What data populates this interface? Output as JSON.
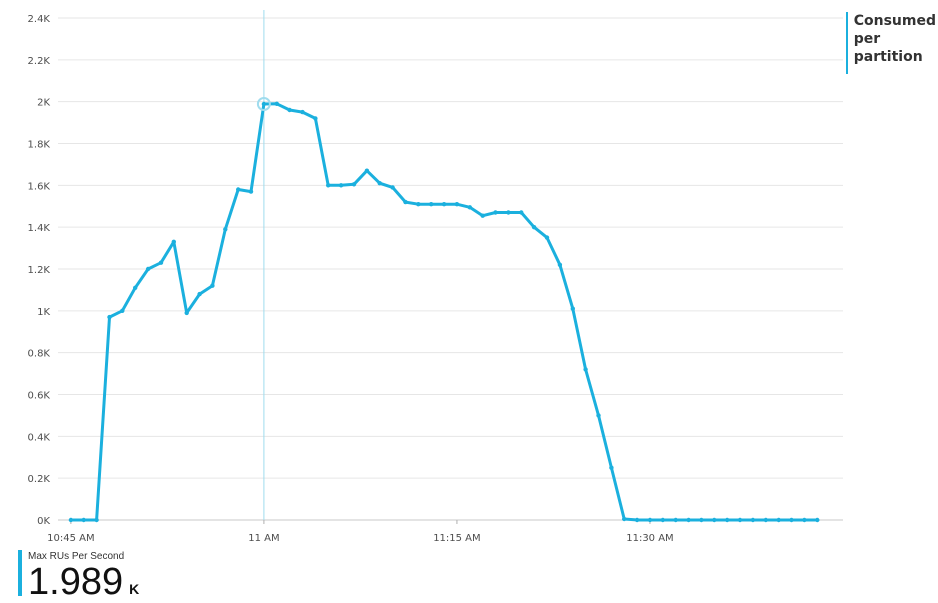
{
  "chart_data": {
    "type": "line",
    "title": "",
    "xlabel": "",
    "ylabel": "",
    "ylim": [
      0,
      2400
    ],
    "grid": true,
    "y_ticks": [
      0,
      200,
      400,
      600,
      800,
      1000,
      1200,
      1400,
      1600,
      1800,
      2000,
      2200,
      2400
    ],
    "y_tick_labels": [
      "0K",
      "0.2K",
      "0.4K",
      "0.6K",
      "0.8K",
      "1K",
      "1.2K",
      "1.4K",
      "1.6K",
      "1.8K",
      "2K",
      "2.2K",
      "2.4K"
    ],
    "x_ticks": [
      "10:45 AM",
      "11 AM",
      "11:15 AM",
      "11:30 AM"
    ],
    "x_range_minutes_from_10_45": [
      -1,
      60
    ],
    "legend_position": "top-right",
    "series_color": "#1bb0de",
    "cursor_x": "11 AM",
    "series": [
      {
        "name": "Consumed per partition",
        "x": [
          "10:45 AM",
          "10:46 AM",
          "10:47 AM",
          "10:48 AM",
          "10:49 AM",
          "10:50 AM",
          "10:51 AM",
          "10:52 AM",
          "10:53 AM",
          "10:54 AM",
          "10:55 AM",
          "10:56 AM",
          "10:57 AM",
          "10:58 AM",
          "10:59 AM",
          "11:00 AM",
          "11:01 AM",
          "11:02 AM",
          "11:03 AM",
          "11:04 AM",
          "11:05 AM",
          "11:06 AM",
          "11:07 AM",
          "11:08 AM",
          "11:09 AM",
          "11:10 AM",
          "11:11 AM",
          "11:12 AM",
          "11:13 AM",
          "11:14 AM",
          "11:15 AM",
          "11:16 AM",
          "11:17 AM",
          "11:18 AM",
          "11:19 AM",
          "11:20 AM",
          "11:21 AM",
          "11:22 AM",
          "11:23 AM",
          "11:24 AM",
          "11:25 AM",
          "11:26 AM",
          "11:27 AM",
          "11:28 AM",
          "11:29 AM",
          "11:30 AM",
          "11:31 AM",
          "11:32 AM",
          "11:33 AM",
          "11:34 AM",
          "11:35 AM",
          "11:36 AM",
          "11:37 AM",
          "11:38 AM",
          "11:39 AM",
          "11:40 AM",
          "11:41 AM",
          "11:42 AM",
          "11:43 AM"
        ],
        "values": [
          0,
          0,
          0,
          970,
          1000,
          1110,
          1200,
          1230,
          1330,
          990,
          1080,
          1120,
          1390,
          1580,
          1570,
          1989,
          1990,
          1960,
          1950,
          1920,
          1600,
          1600,
          1605,
          1670,
          1610,
          1590,
          1520,
          1510,
          1510,
          1510,
          1510,
          1495,
          1455,
          1470,
          1470,
          1470,
          1400,
          1350,
          1220,
          1010,
          720,
          500,
          250,
          5,
          0,
          0,
          0,
          0,
          0,
          0,
          0,
          0,
          0,
          0,
          0,
          0,
          0,
          0,
          0
        ]
      }
    ]
  },
  "legend": {
    "label": "Consumed per partition"
  },
  "metric": {
    "title": "Max RUs Per Second",
    "value": "1.989",
    "unit": "K"
  }
}
